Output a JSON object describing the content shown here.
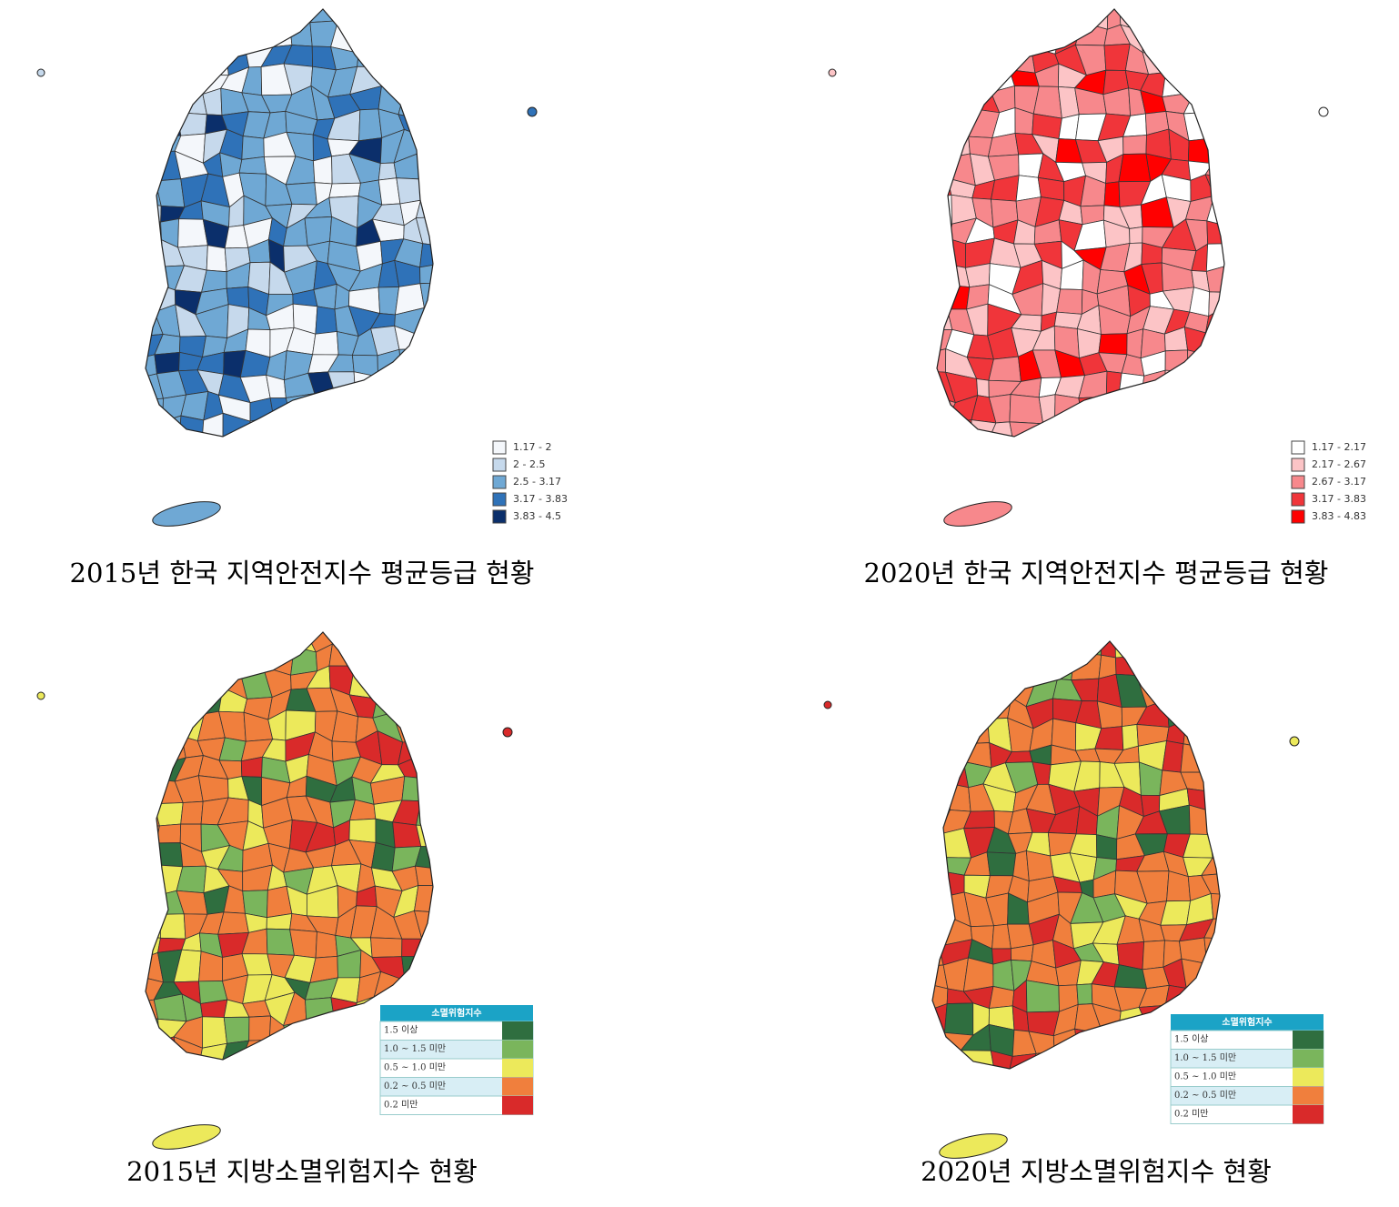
{
  "panels": [
    {
      "caption": "2015년 한국 지역안전지수 평균등급 현황",
      "legend": [
        {
          "label": "1.17 - 2",
          "color": "#f4f7fb"
        },
        {
          "label": "2 - 2.5",
          "color": "#c6d9ec"
        },
        {
          "label": "2.5 - 3.17",
          "color": "#6fa8d4"
        },
        {
          "label": "3.17 - 3.83",
          "color": "#2f72b8"
        },
        {
          "label": "3.83 - 4.5",
          "color": "#0b2f6b"
        }
      ]
    },
    {
      "caption": "2020년 한국 지역안전지수 평균등급 현황",
      "legend": [
        {
          "label": "1.17 - 2.17",
          "color": "#ffffff"
        },
        {
          "label": "2.17 - 2.67",
          "color": "#fcc4c6"
        },
        {
          "label": "2.67 - 3.17",
          "color": "#f7888c"
        },
        {
          "label": "3.17 - 3.83",
          "color": "#f0353a"
        },
        {
          "label": "3.83 - 4.83",
          "color": "#ff0000"
        }
      ]
    },
    {
      "caption": "2015년 지방소멸위험지수 현황",
      "legend_title": "소멸위험지수",
      "legend": [
        {
          "label": "1.5 이상",
          "color": "#2f6e3f"
        },
        {
          "label": "1.0 ~ 1.5 미만",
          "color": "#7ab55c"
        },
        {
          "label": "0.5 ~ 1.0 미만",
          "color": "#ece95b"
        },
        {
          "label": "0.2 ~ 0.5 미만",
          "color": "#f07f3d"
        },
        {
          "label": "0.2 미만",
          "color": "#d92a2a"
        }
      ]
    },
    {
      "caption": "2020년 지방소멸위험지수 현황",
      "legend_title": "소멸위험지수",
      "legend": [
        {
          "label": "1.5 이상",
          "color": "#2f6e3f"
        },
        {
          "label": "1.0 ~ 1.5 미만",
          "color": "#7ab55c"
        },
        {
          "label": "0.5 ~ 1.0 미만",
          "color": "#ece95b"
        },
        {
          "label": "0.2 ~ 0.5 미만",
          "color": "#f07f3d"
        },
        {
          "label": "0.2 미만",
          "color": "#d92a2a"
        }
      ]
    }
  ]
}
